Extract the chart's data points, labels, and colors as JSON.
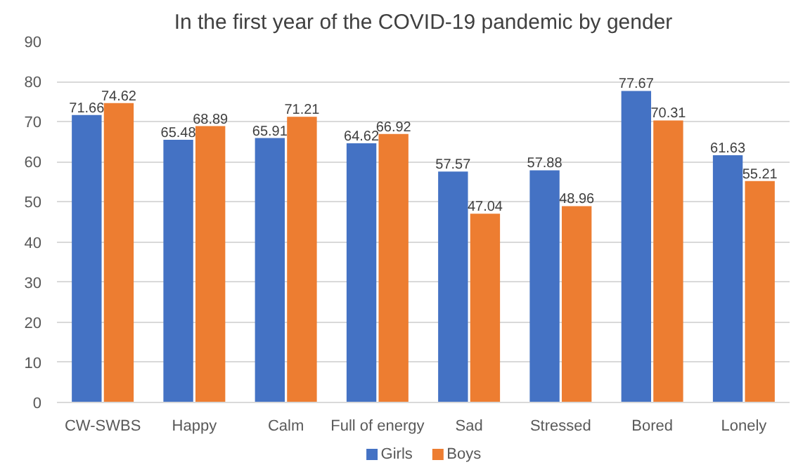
{
  "chart_data": {
    "type": "bar",
    "title": "In the first year of the COVID-19 pandemic by gender",
    "categories": [
      "CW-SWBS",
      "Happy",
      "Calm",
      "Full of energy",
      "Sad",
      "Stressed",
      "Bored",
      "Lonely"
    ],
    "series": [
      {
        "name": "Girls",
        "color": "#4472c4",
        "values": [
          71.66,
          65.48,
          65.91,
          64.62,
          57.57,
          57.88,
          77.67,
          61.63
        ]
      },
      {
        "name": "Boys",
        "color": "#ed7d31",
        "values": [
          74.62,
          68.89,
          71.21,
          66.92,
          47.04,
          48.96,
          70.31,
          55.21
        ]
      }
    ],
    "ylim": [
      0,
      90
    ],
    "yticks": [
      0,
      10,
      20,
      30,
      40,
      50,
      60,
      70,
      80,
      90
    ],
    "grid": "y",
    "legend": "bottom",
    "data_labels": true
  }
}
